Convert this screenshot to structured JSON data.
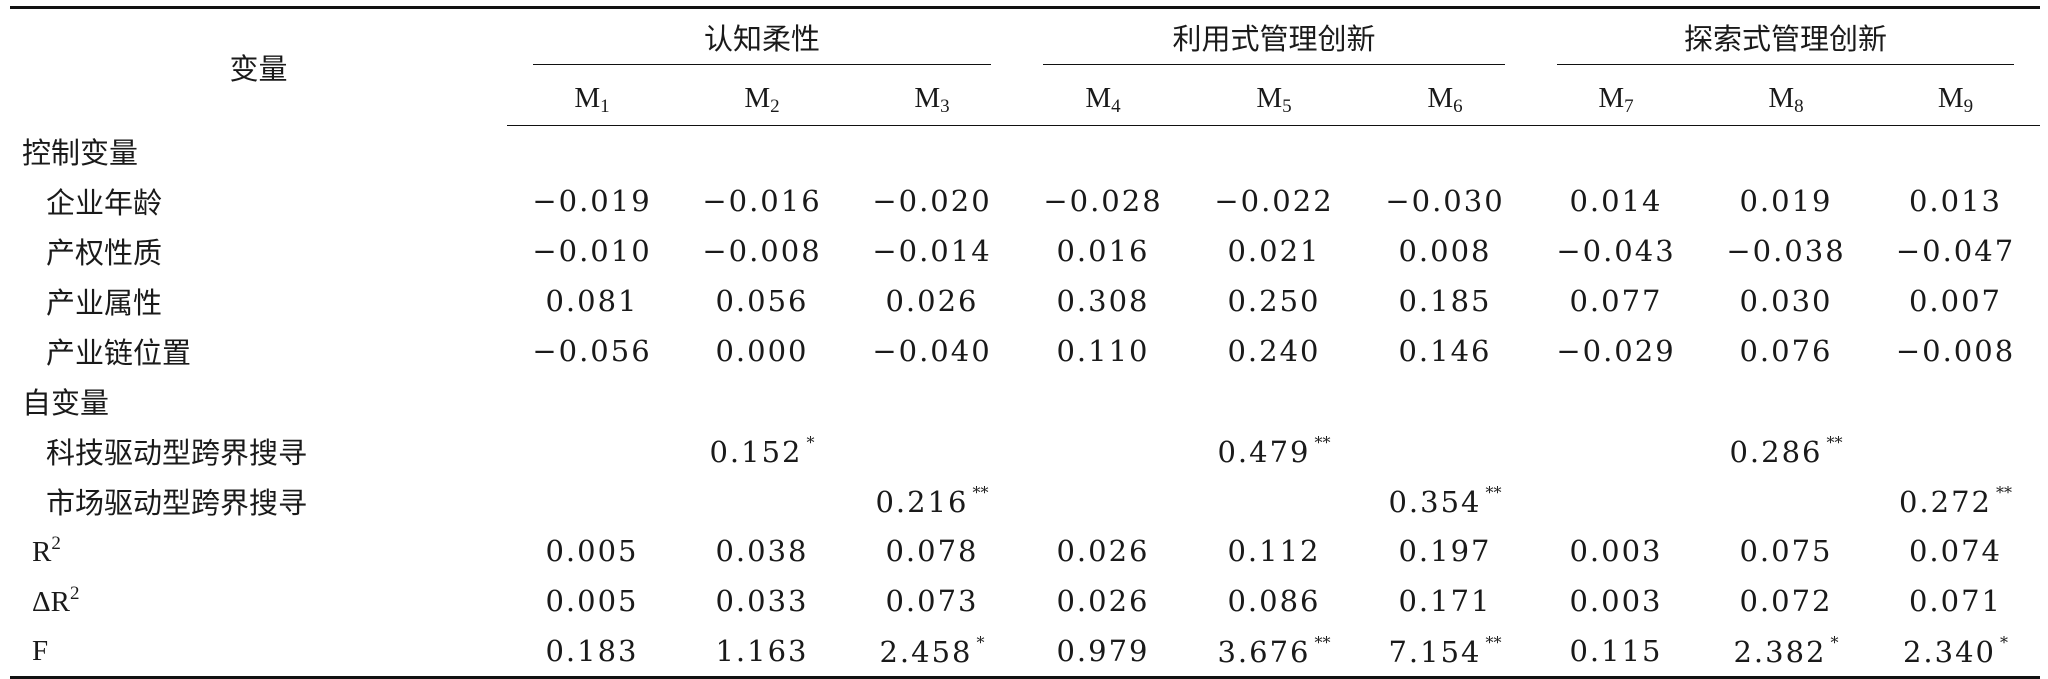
{
  "header": {
    "variable_label": "变量",
    "groups": [
      "认知柔性",
      "利用式管理创新",
      "探索式管理创新"
    ],
    "models": [
      {
        "base": "M",
        "sub": "1"
      },
      {
        "base": "M",
        "sub": "2"
      },
      {
        "base": "M",
        "sub": "3"
      },
      {
        "base": "M",
        "sub": "4"
      },
      {
        "base": "M",
        "sub": "5"
      },
      {
        "base": "M",
        "sub": "6"
      },
      {
        "base": "M",
        "sub": "7"
      },
      {
        "base": "M",
        "sub": "8"
      },
      {
        "base": "M",
        "sub": "9"
      }
    ]
  },
  "sections": {
    "control": "控制变量",
    "independent": "自变量"
  },
  "rows": {
    "age": {
      "label": "企业年龄",
      "values": [
        "-0.019",
        "-0.016",
        "-0.020",
        "-0.028",
        "-0.022",
        "-0.030",
        "0.014",
        "0.019",
        "0.013"
      ]
    },
    "ownership": {
      "label": "产权性质",
      "values": [
        "-0.010",
        "-0.008",
        "-0.014",
        "0.016",
        "0.021",
        "0.008",
        "-0.043",
        "-0.038",
        "-0.047"
      ]
    },
    "industry": {
      "label": "产业属性",
      "values": [
        "0.081",
        "0.056",
        "0.026",
        "0.308",
        "0.250",
        "0.185",
        "0.077",
        "0.030",
        "0.007"
      ]
    },
    "chain": {
      "label": "产业链位置",
      "values": [
        "-0.056",
        "0.000",
        "-0.040",
        "0.110",
        "0.240",
        "0.146",
        "-0.029",
        "0.076",
        "-0.008"
      ]
    },
    "tech": {
      "label": "科技驱动型跨界搜寻",
      "values": [
        "",
        "0.152",
        "",
        "",
        "0.479",
        "",
        "",
        "0.286",
        ""
      ],
      "stars": [
        "",
        "*",
        "",
        "",
        "**",
        "",
        "",
        "**",
        ""
      ]
    },
    "market": {
      "label": "市场驱动型跨界搜寻",
      "values": [
        "",
        "",
        "0.216",
        "",
        "",
        "0.354",
        "",
        "",
        "0.272"
      ],
      "stars": [
        "",
        "",
        "**",
        "",
        "",
        "**",
        "",
        "",
        "**"
      ]
    },
    "r2": {
      "label": "R",
      "sup": "2",
      "values": [
        "0.005",
        "0.038",
        "0.078",
        "0.026",
        "0.112",
        "0.197",
        "0.003",
        "0.075",
        "0.074"
      ]
    },
    "dr2": {
      "label": "ΔR",
      "sup": "2",
      "values": [
        "0.005",
        "0.033",
        "0.073",
        "0.026",
        "0.086",
        "0.171",
        "0.003",
        "0.072",
        "0.071"
      ]
    },
    "f": {
      "label": "F",
      "values": [
        "0.183",
        "1.163",
        "2.458",
        "0.979",
        "3.676",
        "7.154",
        "0.115",
        "2.382",
        "2.340"
      ],
      "stars": [
        "",
        "",
        "*",
        "",
        "**",
        "**",
        "",
        "*",
        "*"
      ]
    }
  }
}
